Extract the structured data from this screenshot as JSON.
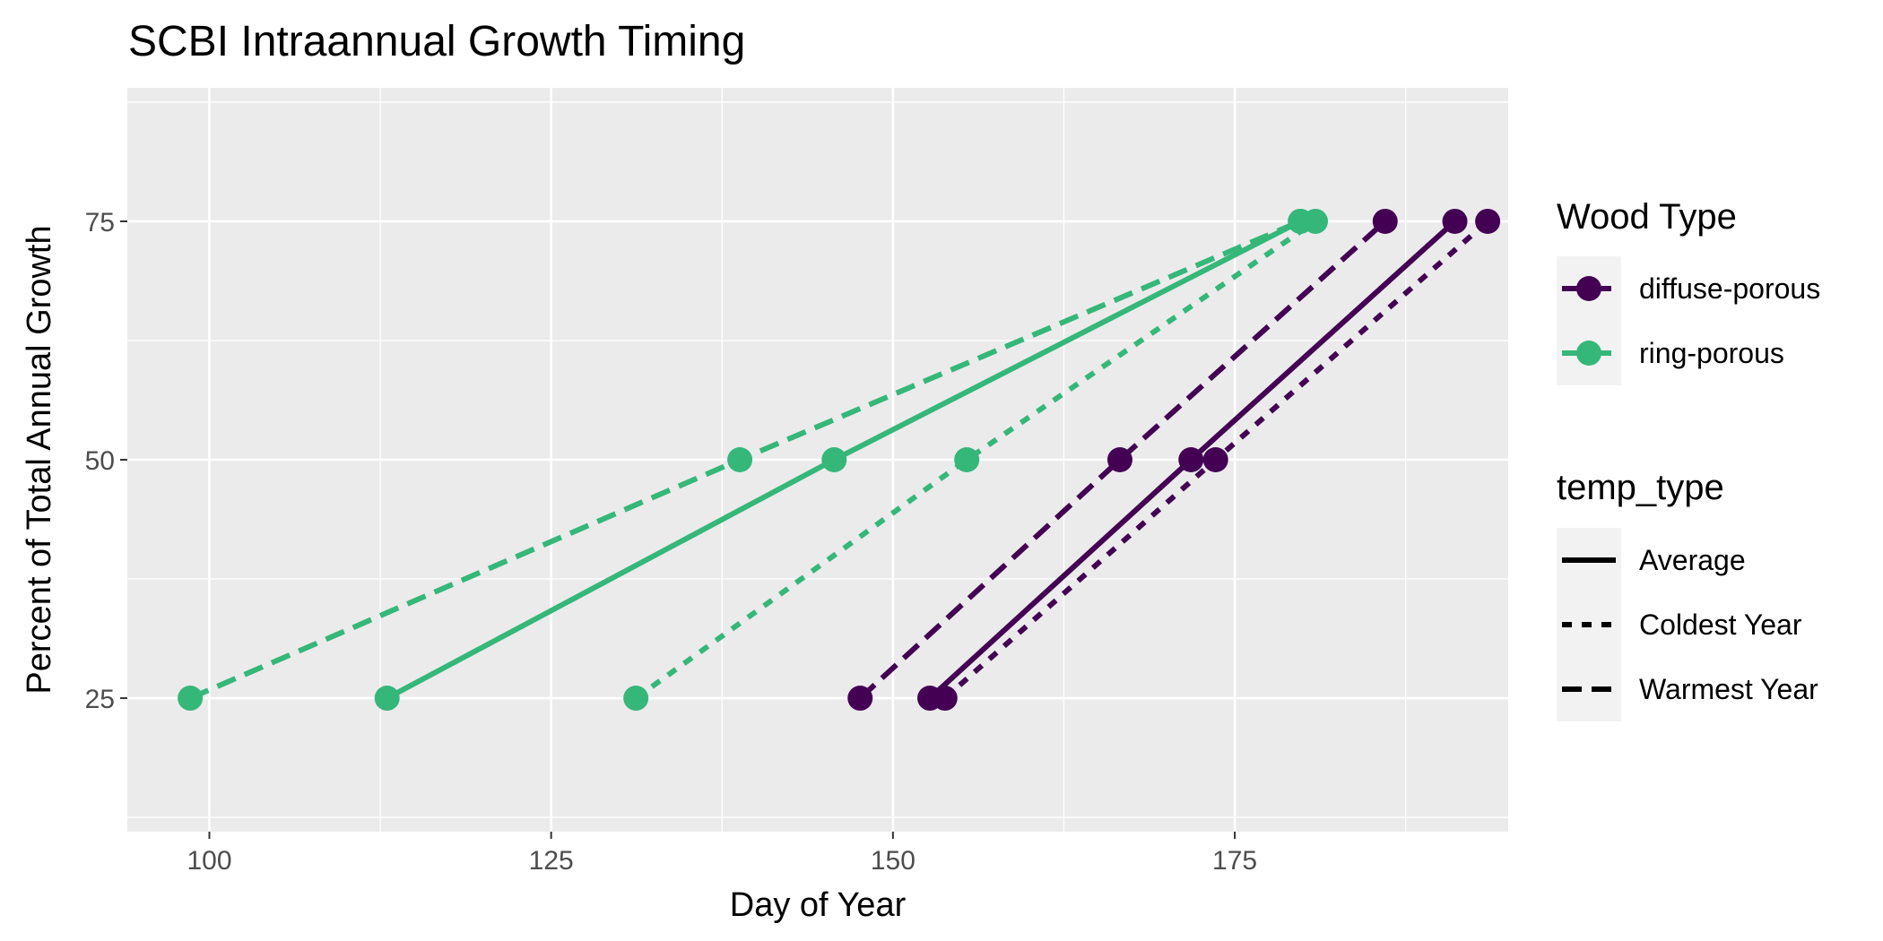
{
  "chart_data": {
    "type": "line",
    "title": "SCBI Intraannual Growth Timing",
    "xlabel": "Day of Year",
    "ylabel": "Percent of Total Annual Growth",
    "xlim": [
      94,
      195
    ],
    "ylim": [
      11,
      89
    ],
    "x_ticks": [
      100,
      125,
      150,
      175
    ],
    "y_ticks": [
      25,
      50,
      75
    ],
    "grid": true,
    "background": "#EBEBEB",
    "legend_placement": "right",
    "legend": {
      "color": {
        "title": "Wood Type",
        "entries": [
          {
            "label": "diffuse-porous",
            "color": "#440154"
          },
          {
            "label": "ring-porous",
            "color": "#35B779"
          }
        ]
      },
      "linetype": {
        "title": "temp_type",
        "entries": [
          {
            "label": "Average",
            "dash": "solid"
          },
          {
            "label": "Coldest Year",
            "dash": "dotted"
          },
          {
            "label": "Warmest Year",
            "dash": "dashed"
          }
        ]
      }
    },
    "series": [
      {
        "wood_type": "ring-porous",
        "temp_type": "Average",
        "points": [
          [
            113,
            25
          ],
          [
            145.7,
            50
          ],
          [
            179.8,
            75
          ]
        ]
      },
      {
        "wood_type": "ring-porous",
        "temp_type": "Warmest Year",
        "points": [
          [
            98.6,
            25
          ],
          [
            138.8,
            50
          ],
          [
            179.8,
            75
          ]
        ]
      },
      {
        "wood_type": "ring-porous",
        "temp_type": "Coldest Year",
        "points": [
          [
            131.2,
            25
          ],
          [
            155.4,
            50
          ],
          [
            180.9,
            75
          ]
        ]
      },
      {
        "wood_type": "diffuse-porous",
        "temp_type": "Average",
        "points": [
          [
            152.7,
            25
          ],
          [
            171.8,
            50
          ],
          [
            191.1,
            75
          ]
        ]
      },
      {
        "wood_type": "diffuse-porous",
        "temp_type": "Warmest Year",
        "points": [
          [
            147.6,
            25
          ],
          [
            166.6,
            50
          ],
          [
            186,
            75
          ]
        ]
      },
      {
        "wood_type": "diffuse-porous",
        "temp_type": "Coldest Year",
        "points": [
          [
            153.8,
            25
          ],
          [
            173.6,
            50
          ],
          [
            193.5,
            75
          ]
        ]
      }
    ]
  }
}
